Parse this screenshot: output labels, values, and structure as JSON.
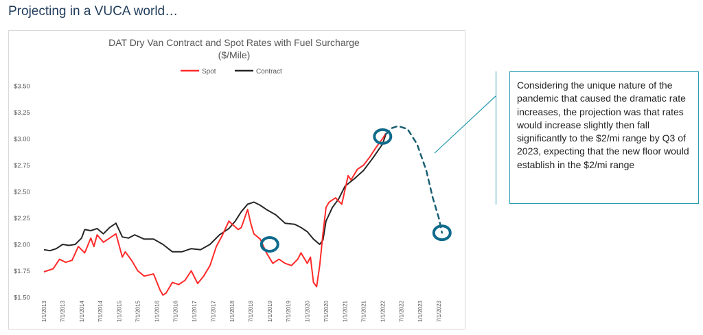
{
  "slide": {
    "title": "Projecting in a VUCA world…"
  },
  "callout": {
    "text": "Considering the unique nature of the pandemic that caused the dramatic rate increases, the projection was that rates would increase slightly then fall significantly to the $2/mi range by Q3 of 2023, expecting that the new floor would establish in the $2/mi range"
  },
  "colors": {
    "spot": "#ff2a2a",
    "contract": "#262626",
    "highlight": "#0f6a8c",
    "callout_border": "#2a9bb0",
    "projection": "#1a5f73"
  },
  "chart_data": {
    "type": "line",
    "title": "DAT Dry Van Contract and Spot Rates with Fuel Surcharge",
    "subtitle": "($/Mile)",
    "legend": [
      "Spot",
      "Contract"
    ],
    "legend_position": "top-center",
    "ylim": [
      1.5,
      3.5
    ],
    "y_ticks": [
      "$1.50",
      "$1.75",
      "$2.00",
      "$2.25",
      "$2.50",
      "$2.75",
      "$3.00",
      "$3.25",
      "$3.50"
    ],
    "x_range": [
      "2013-01-01",
      "2023-10-01"
    ],
    "x_ticks": [
      "1/1/2013",
      "7/1/2013",
      "1/1/2014",
      "7/1/2014",
      "1/1/2015",
      "7/1/2015",
      "1/1/2016",
      "7/1/2016",
      "1/1/2017",
      "7/1/2017",
      "1/1/2018",
      "7/1/2018",
      "1/1/2019",
      "7/1/2019",
      "1/1/2020",
      "7/1/2020",
      "1/1/2021",
      "7/1/2021",
      "1/1/2022",
      "7/1/2022",
      "1/1/2023",
      "7/1/2023"
    ],
    "grid": false,
    "series": [
      {
        "name": "Spot",
        "x": [
          "2013-01-01",
          "2013-04-01",
          "2013-06-01",
          "2013-08-01",
          "2013-10-01",
          "2013-12-01",
          "2014-02-01",
          "2014-04-01",
          "2014-05-01",
          "2014-06-01",
          "2014-08-01",
          "2014-10-01",
          "2014-12-01",
          "2015-02-01",
          "2015-03-01",
          "2015-05-01",
          "2015-07-01",
          "2015-09-01",
          "2015-12-01",
          "2016-02-01",
          "2016-03-01",
          "2016-04-01",
          "2016-06-01",
          "2016-08-01",
          "2016-10-01",
          "2016-12-01",
          "2017-02-01",
          "2017-04-01",
          "2017-06-01",
          "2017-08-01",
          "2017-10-01",
          "2017-12-01",
          "2018-03-01",
          "2018-04-01",
          "2018-06-01",
          "2018-07-01",
          "2018-08-01",
          "2018-10-01",
          "2018-12-01",
          "2019-02-01",
          "2019-04-01",
          "2019-06-01",
          "2019-08-01",
          "2019-10-01",
          "2019-11-01",
          "2020-01-01",
          "2020-02-01",
          "2020-03-01",
          "2020-04-01",
          "2020-05-01",
          "2020-06-01",
          "2020-07-01",
          "2020-08-01",
          "2020-10-01",
          "2020-12-01",
          "2021-02-01",
          "2021-03-01",
          "2021-05-01",
          "2021-07-01",
          "2021-09-01",
          "2021-11-01",
          "2022-01-01",
          "2022-02-01"
        ],
        "values": [
          1.74,
          1.77,
          1.86,
          1.83,
          1.85,
          1.98,
          1.92,
          2.06,
          1.98,
          2.09,
          2.02,
          2.06,
          2.1,
          1.88,
          1.93,
          1.85,
          1.75,
          1.7,
          1.72,
          1.57,
          1.52,
          1.54,
          1.64,
          1.62,
          1.66,
          1.75,
          1.63,
          1.7,
          1.8,
          1.98,
          2.09,
          2.22,
          2.14,
          2.16,
          2.33,
          2.2,
          2.1,
          2.05,
          1.92,
          1.82,
          1.86,
          1.82,
          1.8,
          1.86,
          1.92,
          1.82,
          1.88,
          1.64,
          1.6,
          1.8,
          2.1,
          2.35,
          2.4,
          2.44,
          2.38,
          2.65,
          2.61,
          2.71,
          2.75,
          2.83,
          2.92,
          3.0,
          3.05
        ]
      },
      {
        "name": "Contract",
        "x": [
          "2013-01-01",
          "2013-03-01",
          "2013-05-01",
          "2013-07-01",
          "2013-09-01",
          "2013-11-01",
          "2014-01-01",
          "2014-02-01",
          "2014-04-01",
          "2014-06-01",
          "2014-08-01",
          "2014-10-01",
          "2014-12-01",
          "2015-02-01",
          "2015-04-01",
          "2015-06-01",
          "2015-09-01",
          "2015-12-01",
          "2016-03-01",
          "2016-06-01",
          "2016-09-01",
          "2016-12-01",
          "2017-03-01",
          "2017-06-01",
          "2017-09-01",
          "2017-12-01",
          "2018-02-01",
          "2018-04-01",
          "2018-06-01",
          "2018-08-01",
          "2018-10-01",
          "2018-12-01",
          "2019-03-01",
          "2019-06-01",
          "2019-09-01",
          "2019-11-01",
          "2020-01-01",
          "2020-03-01",
          "2020-05-01",
          "2020-06-01",
          "2020-07-01",
          "2020-09-01",
          "2020-11-01",
          "2021-01-01",
          "2021-04-01",
          "2021-07-01",
          "2021-10-01",
          "2022-01-01",
          "2022-02-01"
        ],
        "values": [
          1.95,
          1.94,
          1.96,
          2.0,
          1.99,
          2.0,
          2.06,
          2.14,
          2.13,
          2.15,
          2.1,
          2.16,
          2.2,
          2.07,
          2.06,
          2.09,
          2.05,
          2.05,
          2.0,
          1.93,
          1.93,
          1.96,
          1.95,
          2.0,
          2.09,
          2.15,
          2.22,
          2.31,
          2.38,
          2.4,
          2.37,
          2.33,
          2.28,
          2.2,
          2.19,
          2.16,
          2.12,
          2.05,
          2.0,
          2.04,
          2.22,
          2.35,
          2.43,
          2.55,
          2.62,
          2.7,
          2.82,
          2.95,
          3.04
        ]
      }
    ],
    "projection": {
      "x": [
        "2022-02-01",
        "2022-04-01",
        "2022-06-01",
        "2022-09-01",
        "2022-12-01",
        "2023-03-01",
        "2023-05-01",
        "2023-07-01",
        "2023-08-01"
      ],
      "values": [
        3.04,
        3.1,
        3.12,
        3.09,
        2.95,
        2.7,
        2.45,
        2.25,
        2.11
      ]
    },
    "highlights": [
      {
        "x": "2019-01-01",
        "value": 2.0
      },
      {
        "x": "2022-01-01",
        "value": 3.02
      },
      {
        "x": "2023-08-01",
        "value": 2.11
      }
    ]
  }
}
